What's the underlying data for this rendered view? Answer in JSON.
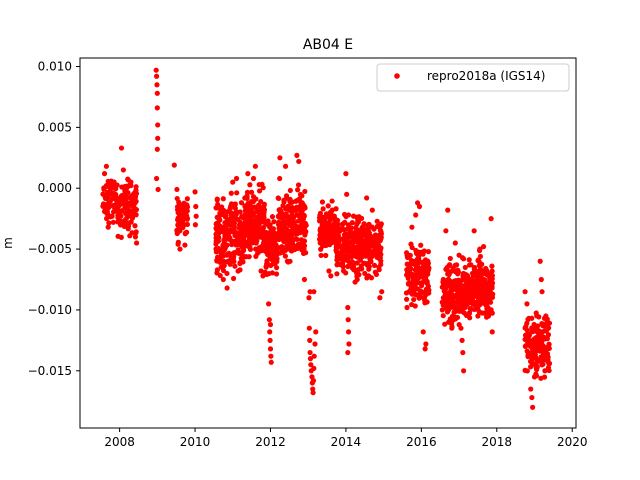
{
  "chart_data": {
    "type": "scatter",
    "title": "AB04 E",
    "xlabel": "",
    "ylabel": "m",
    "xlim": [
      2006.95,
      2020.1
    ],
    "ylim": [
      -0.0197,
      0.0107
    ],
    "x_ticks": [
      2008,
      2010,
      2012,
      2014,
      2016,
      2018,
      2020
    ],
    "x_tick_labels": [
      "2008",
      "2010",
      "2012",
      "2014",
      "2016",
      "2018",
      "2020"
    ],
    "y_ticks": [
      0.01,
      0.005,
      0.0,
      -0.005,
      -0.01,
      -0.015
    ],
    "y_tick_labels": [
      "0.010",
      "0.005",
      "0.000",
      "−0.005",
      "−0.010",
      "−0.015"
    ],
    "grid": false,
    "legend_position": "top-right",
    "series": [
      {
        "name": "repro2018a (IGS14)",
        "color": "#ff0000",
        "marker": "circle",
        "segments": [
          {
            "x_start": 2007.55,
            "x_end": 2007.95,
            "y_min": -0.0035,
            "y_max": 0.0015,
            "center": -0.001,
            "n": 70
          },
          {
            "x_start": 2007.95,
            "x_end": 2008.45,
            "y_min": -0.0045,
            "y_max": 0.0018,
            "center": -0.0015,
            "n": 110
          },
          {
            "x_start": 2009.5,
            "x_end": 2009.8,
            "y_min": -0.005,
            "y_max": 0.0,
            "center": -0.0025,
            "n": 60
          },
          {
            "x_start": 2010.55,
            "x_end": 2011.3,
            "y_min": -0.0085,
            "y_max": 0.0,
            "center": -0.004,
            "n": 230
          },
          {
            "x_start": 2011.3,
            "x_end": 2011.85,
            "y_min": -0.0065,
            "y_max": 0.0012,
            "center": -0.0028,
            "n": 180
          },
          {
            "x_start": 2011.85,
            "x_end": 2012.2,
            "y_min": -0.0085,
            "y_max": -0.002,
            "center": -0.005,
            "n": 90
          },
          {
            "x_start": 2012.2,
            "x_end": 2012.95,
            "y_min": -0.0065,
            "y_max": 0.0015,
            "center": -0.0028,
            "n": 230
          },
          {
            "x_start": 2013.3,
            "x_end": 2013.75,
            "y_min": -0.0065,
            "y_max": -0.001,
            "center": -0.0035,
            "n": 140
          },
          {
            "x_start": 2013.75,
            "x_end": 2014.95,
            "y_min": -0.008,
            "y_max": -0.0015,
            "center": -0.0048,
            "n": 320
          },
          {
            "x_start": 2015.6,
            "x_end": 2016.2,
            "y_min": -0.0105,
            "y_max": -0.0035,
            "center": -0.0072,
            "n": 170
          },
          {
            "x_start": 2016.55,
            "x_end": 2017.3,
            "y_min": -0.0115,
            "y_max": -0.0045,
            "center": -0.0085,
            "n": 200
          },
          {
            "x_start": 2017.3,
            "x_end": 2017.9,
            "y_min": -0.012,
            "y_max": -0.005,
            "center": -0.0082,
            "n": 180
          },
          {
            "x_start": 2018.75,
            "x_end": 2019.4,
            "y_min": -0.0165,
            "y_max": -0.0095,
            "center": -0.0128,
            "n": 180
          }
        ],
        "points": [
          [
            2007.6,
            0.0012
          ],
          [
            2007.65,
            0.0018
          ],
          [
            2008.05,
            0.0033
          ],
          [
            2008.1,
            0.0015
          ],
          [
            2008.3,
            0.0005
          ],
          [
            2008.42,
            -0.004
          ],
          [
            2008.45,
            -0.0045
          ],
          [
            2008.97,
            0.0097
          ],
          [
            2008.98,
            0.0092
          ],
          [
            2008.99,
            0.0085
          ],
          [
            2009.0,
            0.0078
          ],
          [
            2009.0,
            0.0066
          ],
          [
            2009.01,
            0.0052
          ],
          [
            2009.01,
            0.0041
          ],
          [
            2009.0,
            0.0032
          ],
          [
            2008.98,
            0.0008
          ],
          [
            2009.02,
            -0.0001
          ],
          [
            2009.45,
            0.0019
          ],
          [
            2009.52,
            -0.0001
          ],
          [
            2009.55,
            -0.0046
          ],
          [
            2009.6,
            -0.005
          ],
          [
            2010.0,
            -0.0003
          ],
          [
            2010.02,
            -0.0015
          ],
          [
            2010.03,
            -0.0023
          ],
          [
            2010.01,
            -0.003
          ],
          [
            2010.75,
            -0.0075
          ],
          [
            2010.85,
            -0.0082
          ],
          [
            2011.0,
            0.0005
          ],
          [
            2011.1,
            0.0008
          ],
          [
            2011.4,
            0.0012
          ],
          [
            2011.55,
            0.0008
          ],
          [
            2011.6,
            0.0018
          ],
          [
            2011.7,
            0.0003
          ],
          [
            2011.75,
            -0.0068
          ],
          [
            2011.8,
            -0.0072
          ],
          [
            2011.95,
            -0.0095
          ],
          [
            2011.97,
            -0.0108
          ],
          [
            2011.98,
            -0.0118
          ],
          [
            2011.99,
            -0.0125
          ],
          [
            2012.0,
            -0.0132
          ],
          [
            2012.01,
            -0.0138
          ],
          [
            2012.02,
            -0.0143
          ],
          [
            2012.0,
            -0.0112
          ],
          [
            2012.25,
            0.0025
          ],
          [
            2012.4,
            0.0018
          ],
          [
            2012.7,
            0.0027
          ],
          [
            2012.75,
            0.0022
          ],
          [
            2012.85,
            -0.0045
          ],
          [
            2012.9,
            -0.0075
          ],
          [
            2013.02,
            -0.009
          ],
          [
            2013.05,
            -0.0085
          ],
          [
            2013.03,
            -0.0115
          ],
          [
            2013.04,
            -0.0125
          ],
          [
            2013.05,
            -0.0135
          ],
          [
            2013.06,
            -0.014
          ],
          [
            2013.07,
            -0.0145
          ],
          [
            2013.08,
            -0.015
          ],
          [
            2013.1,
            -0.0155
          ],
          [
            2013.11,
            -0.016
          ],
          [
            2013.12,
            -0.0165
          ],
          [
            2013.13,
            -0.0168
          ],
          [
            2013.14,
            -0.0158
          ],
          [
            2013.15,
            -0.0148
          ],
          [
            2013.16,
            -0.0138
          ],
          [
            2013.18,
            -0.0128
          ],
          [
            2013.2,
            -0.0118
          ],
          [
            2013.15,
            -0.0085
          ],
          [
            2013.55,
            -0.0068
          ],
          [
            2013.6,
            -0.0072
          ],
          [
            2014.0,
            0.0012
          ],
          [
            2014.02,
            -0.0005
          ],
          [
            2014.05,
            -0.0098
          ],
          [
            2014.06,
            -0.0108
          ],
          [
            2014.07,
            -0.0118
          ],
          [
            2014.08,
            -0.0128
          ],
          [
            2014.05,
            -0.0135
          ],
          [
            2014.2,
            -0.0065
          ],
          [
            2014.3,
            -0.0075
          ],
          [
            2014.5,
            -0.007
          ],
          [
            2014.6,
            -0.0072
          ],
          [
            2014.55,
            -0.0008
          ],
          [
            2014.7,
            -0.0018
          ],
          [
            2014.9,
            -0.009
          ],
          [
            2014.95,
            -0.0085
          ],
          [
            2015.75,
            -0.0032
          ],
          [
            2015.85,
            -0.0022
          ],
          [
            2015.9,
            -0.0012
          ],
          [
            2015.95,
            -0.0015
          ],
          [
            2015.62,
            -0.0098
          ],
          [
            2016.05,
            -0.0118
          ],
          [
            2016.1,
            -0.0132
          ],
          [
            2016.12,
            -0.0128
          ],
          [
            2016.65,
            -0.0035
          ],
          [
            2016.7,
            -0.0018
          ],
          [
            2016.9,
            -0.0045
          ],
          [
            2017.0,
            -0.0055
          ],
          [
            2017.05,
            -0.0115
          ],
          [
            2017.08,
            -0.0125
          ],
          [
            2017.1,
            -0.0135
          ],
          [
            2017.12,
            -0.015
          ],
          [
            2017.4,
            -0.0035
          ],
          [
            2017.55,
            -0.005
          ],
          [
            2017.65,
            -0.0048
          ],
          [
            2017.85,
            -0.0025
          ],
          [
            2017.78,
            -0.0105
          ],
          [
            2017.88,
            -0.0118
          ],
          [
            2018.75,
            -0.0085
          ],
          [
            2018.8,
            -0.0095
          ],
          [
            2018.9,
            -0.0165
          ],
          [
            2018.93,
            -0.0172
          ],
          [
            2018.95,
            -0.018
          ],
          [
            2019.0,
            -0.0155
          ],
          [
            2019.15,
            -0.006
          ],
          [
            2019.18,
            -0.0075
          ],
          [
            2019.2,
            -0.0085
          ],
          [
            2019.3,
            -0.0105
          ],
          [
            2019.35,
            -0.011
          ]
        ]
      }
    ]
  }
}
